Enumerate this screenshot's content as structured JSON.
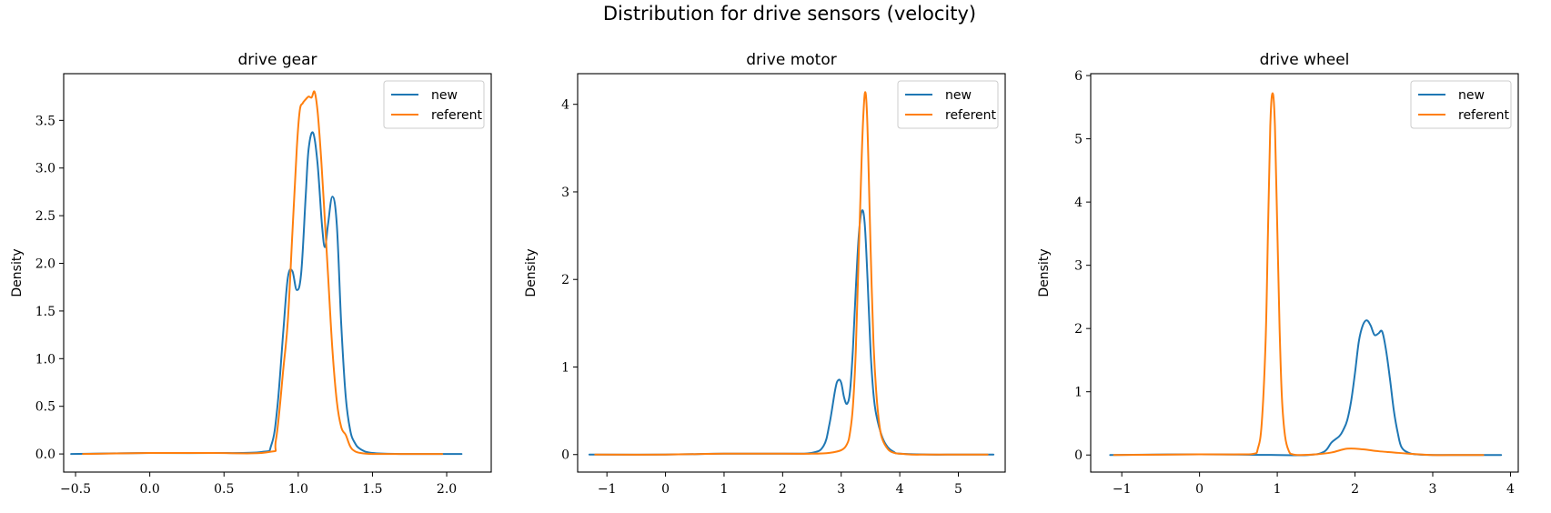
{
  "figure": {
    "title": "Distribution for drive sensors (velocity)"
  },
  "colors": {
    "new": "#1f77b4",
    "referent": "#ff7f0e",
    "frame": "#000000",
    "legend_border": "#cccccc"
  },
  "chart_data": [
    {
      "type": "line",
      "title": "drive gear",
      "xlabel": "",
      "ylabel": "Density",
      "xlim": [
        -0.58,
        2.3
      ],
      "ylim": [
        -0.19,
        3.99
      ],
      "xticks": [
        -0.5,
        0.0,
        0.5,
        1.0,
        1.5,
        2.0
      ],
      "xtick_labels": [
        "−0.5",
        "0.0",
        "0.5",
        "1.0",
        "1.5",
        "2.0"
      ],
      "yticks": [
        0.0,
        0.5,
        1.0,
        1.5,
        2.0,
        2.5,
        3.0,
        3.5
      ],
      "ytick_labels": [
        "0.0",
        "0.5",
        "1.0",
        "1.5",
        "2.0",
        "2.5",
        "3.0",
        "3.5"
      ],
      "legend": {
        "position": "upper right",
        "entries": [
          "new",
          "referent"
        ]
      },
      "grid": false,
      "series": [
        {
          "name": "new",
          "color": "#1f77b4",
          "x": [
            -0.53,
            0.0,
            0.4,
            0.75,
            0.82,
            0.86,
            0.9,
            0.93,
            0.96,
            0.99,
            1.02,
            1.05,
            1.07,
            1.1,
            1.13,
            1.16,
            1.18,
            1.2,
            1.23,
            1.26,
            1.29,
            1.32,
            1.35,
            1.38,
            1.42,
            1.5,
            1.7,
            2.0,
            2.1
          ],
          "y": [
            0.0,
            0.01,
            0.01,
            0.02,
            0.1,
            0.5,
            1.3,
            1.85,
            1.92,
            1.72,
            1.9,
            2.7,
            3.2,
            3.37,
            3.05,
            2.4,
            2.17,
            2.4,
            2.7,
            2.4,
            1.35,
            0.6,
            0.25,
            0.12,
            0.05,
            0.01,
            0.0,
            0.0,
            0.0
          ]
        },
        {
          "name": "referent",
          "color": "#ff7f0e",
          "x": [
            -0.45,
            0.0,
            0.4,
            0.8,
            0.85,
            0.9,
            0.93,
            0.96,
            0.99,
            1.01,
            1.03,
            1.05,
            1.07,
            1.09,
            1.11,
            1.13,
            1.15,
            1.17,
            1.2,
            1.23,
            1.26,
            1.29,
            1.32,
            1.35,
            1.38,
            1.42,
            1.5,
            1.7,
            1.97
          ],
          "y": [
            0.0,
            0.01,
            0.01,
            0.02,
            0.15,
            0.9,
            1.4,
            2.3,
            3.2,
            3.6,
            3.68,
            3.72,
            3.75,
            3.74,
            3.8,
            3.6,
            3.2,
            2.7,
            1.9,
            1.1,
            0.55,
            0.28,
            0.2,
            0.08,
            0.03,
            0.01,
            0.0,
            0.0,
            0.0
          ]
        }
      ]
    },
    {
      "type": "line",
      "title": "drive motor",
      "xlabel": "",
      "ylabel": "Density",
      "xlim": [
        -1.5,
        5.8
      ],
      "ylim": [
        -0.2,
        4.35
      ],
      "xticks": [
        -1,
        0,
        1,
        2,
        3,
        4,
        5
      ],
      "xtick_labels": [
        "−1",
        "0",
        "1",
        "2",
        "3",
        "4",
        "5"
      ],
      "yticks": [
        0,
        1,
        2,
        3,
        4
      ],
      "ytick_labels": [
        "0",
        "1",
        "2",
        "3",
        "4"
      ],
      "legend": {
        "position": "upper right",
        "entries": [
          "new",
          "referent"
        ]
      },
      "grid": false,
      "series": [
        {
          "name": "new",
          "color": "#1f77b4",
          "x": [
            -1.3,
            0.0,
            1.0,
            2.0,
            2.5,
            2.7,
            2.8,
            2.9,
            2.95,
            3.0,
            3.05,
            3.1,
            3.15,
            3.2,
            3.25,
            3.3,
            3.35,
            3.4,
            3.45,
            3.5,
            3.55,
            3.6,
            3.7,
            3.8,
            3.9,
            4.0,
            4.5,
            5.0,
            5.6
          ],
          "y": [
            0.0,
            0.0,
            0.01,
            0.01,
            0.02,
            0.1,
            0.35,
            0.75,
            0.85,
            0.82,
            0.65,
            0.58,
            0.72,
            1.2,
            1.9,
            2.5,
            2.78,
            2.65,
            2.0,
            1.2,
            0.7,
            0.45,
            0.2,
            0.08,
            0.03,
            0.01,
            0.0,
            0.0,
            0.0
          ]
        },
        {
          "name": "referent",
          "color": "#ff7f0e",
          "x": [
            -1.2,
            0.0,
            1.0,
            2.0,
            2.5,
            2.8,
            3.0,
            3.1,
            3.15,
            3.2,
            3.25,
            3.3,
            3.35,
            3.38,
            3.41,
            3.44,
            3.47,
            3.5,
            3.55,
            3.6,
            3.65,
            3.7,
            3.8,
            3.9,
            4.0,
            4.2,
            4.5,
            5.0,
            5.5
          ],
          "y": [
            0.0,
            0.0,
            0.01,
            0.01,
            0.01,
            0.02,
            0.05,
            0.12,
            0.25,
            0.55,
            1.2,
            2.3,
            3.4,
            3.9,
            4.14,
            3.9,
            3.2,
            2.4,
            1.3,
            0.7,
            0.35,
            0.18,
            0.06,
            0.02,
            0.01,
            0.0,
            0.0,
            0.0,
            0.0
          ]
        }
      ]
    },
    {
      "type": "line",
      "title": "drive wheel",
      "xlabel": "",
      "ylabel": "Density",
      "xlim": [
        -1.4,
        4.1
      ],
      "ylim": [
        -0.27,
        6.03
      ],
      "xticks": [
        -1,
        0,
        1,
        2,
        3,
        4
      ],
      "xtick_labels": [
        "−1",
        "0",
        "1",
        "2",
        "3",
        "4"
      ],
      "yticks": [
        0,
        1,
        2,
        3,
        4,
        5,
        6
      ],
      "ytick_labels": [
        "0",
        "1",
        "2",
        "3",
        "4",
        "5",
        "6"
      ],
      "legend": {
        "position": "upper right",
        "entries": [
          "new",
          "referent"
        ]
      },
      "grid": false,
      "series": [
        {
          "name": "new",
          "color": "#1f77b4",
          "x": [
            -1.15,
            0.0,
            1.0,
            1.4,
            1.6,
            1.7,
            1.8,
            1.85,
            1.9,
            1.95,
            2.0,
            2.05,
            2.1,
            2.15,
            2.2,
            2.25,
            2.3,
            2.35,
            2.4,
            2.45,
            2.5,
            2.55,
            2.6,
            2.7,
            2.8,
            3.0,
            3.5,
            3.88
          ],
          "y": [
            0.0,
            0.01,
            0.0,
            0.0,
            0.05,
            0.2,
            0.3,
            0.4,
            0.55,
            0.85,
            1.3,
            1.8,
            2.05,
            2.13,
            2.05,
            1.9,
            1.92,
            1.95,
            1.65,
            1.2,
            0.7,
            0.35,
            0.12,
            0.03,
            0.01,
            0.0,
            0.0,
            0.0
          ]
        },
        {
          "name": "referent",
          "color": "#ff7f0e",
          "x": [
            -1.1,
            0.0,
            0.5,
            0.7,
            0.75,
            0.8,
            0.85,
            0.88,
            0.91,
            0.94,
            0.97,
            1.0,
            1.03,
            1.06,
            1.1,
            1.15,
            1.2,
            1.3,
            1.5,
            1.7,
            1.9,
            2.1,
            2.3,
            2.5,
            2.7,
            3.0,
            3.35,
            3.65
          ],
          "y": [
            0.0,
            0.01,
            0.01,
            0.02,
            0.1,
            0.5,
            1.8,
            3.5,
            5.2,
            5.72,
            5.2,
            3.6,
            2.0,
            0.9,
            0.3,
            0.06,
            0.01,
            0.0,
            0.01,
            0.04,
            0.1,
            0.09,
            0.06,
            0.04,
            0.02,
            0.0,
            0.0,
            0.0
          ]
        }
      ]
    }
  ]
}
